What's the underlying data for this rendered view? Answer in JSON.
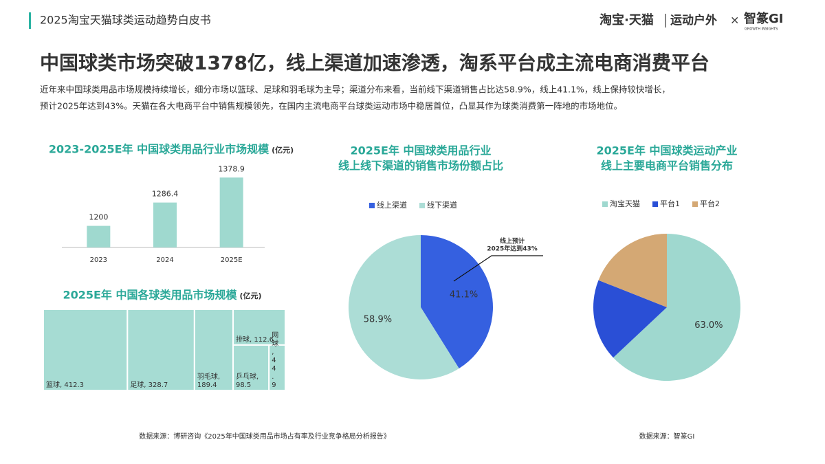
{
  "header": {
    "title": "2025淘宝天猫球类运动趋势白皮书",
    "brand": "淘宝·天猫",
    "section": "运动户外",
    "cross": "×",
    "partner": "智篆GI",
    "partner_tagline": "GROWTH INSIGHTS"
  },
  "title": "中国球类市场突破1378亿，线上渠道加速渗透，淘系平台成主流电商消费平台",
  "summary": [
    "近年来中国球类用品市场规模持续增长，细分市场以篮球、足球和羽毛球为主导；渠道分布来看，当前线下渠道销售占比达58.9%，线上41.1%，线上保持较快增长，",
    "预计2025年达到43%。天猫在各大电商平台中销售规模领先，在国内主流电商平台球类运动市场中稳居首位，凸显其作为球类消费第一阵地的市场地位。"
  ],
  "sources": [
    "数据来源：博研咨询《2025年中国球类用品市场占有率及行业竞争格局分析报告》",
    "数据来源：智篆GI"
  ],
  "chart_data": [
    {
      "type": "bar",
      "title": "2023-2025E年 中国球类用品行业市场规模",
      "unit": "(亿元)",
      "categories": [
        "2023",
        "2024",
        "2025E"
      ],
      "values": [
        1200,
        1286.4,
        1378.9
      ],
      "ylim": [
        1120,
        1400
      ],
      "color": "#9fd9cf"
    },
    {
      "type": "treemap",
      "title": "2025E年 中国各球类用品市场规模",
      "unit": "(亿元)",
      "values": [
        412.3,
        328.7,
        189.4,
        112.6,
        98.5,
        44.9
      ],
      "value_labels": [
        "篮球, 412.3",
        "足球, 328.7",
        "羽毛球, 189.4",
        "排球, 112.6",
        "乒乓球, 98.5",
        "网球, 44.9"
      ],
      "color": "#a6dcd3"
    },
    {
      "type": "pie",
      "title": [
        "2025E年 中国球类用品行业",
        "线上线下渠道的销售市场份额占比"
      ],
      "categories": [
        "线上渠道",
        "线下渠道"
      ],
      "values": [
        41.1,
        58.9
      ],
      "value_labels": [
        "41.1%",
        "58.9%"
      ],
      "colors": [
        "#3560e0",
        "#acddd6"
      ],
      "annotation": [
        "线上预计",
        "2025年达到43%"
      ]
    },
    {
      "type": "pie",
      "title": [
        "2025E年 中国球类运动产业",
        "线上主要电商平台销售分布"
      ],
      "categories": [
        "淘宝天猫",
        "平台1",
        "平台2"
      ],
      "values": [
        63.0,
        18,
        19
      ],
      "value_labels": [
        "63.0%",
        null,
        null
      ],
      "colors": [
        "#9fd8cf",
        "#2a4fd6",
        "#d4a874"
      ]
    }
  ]
}
